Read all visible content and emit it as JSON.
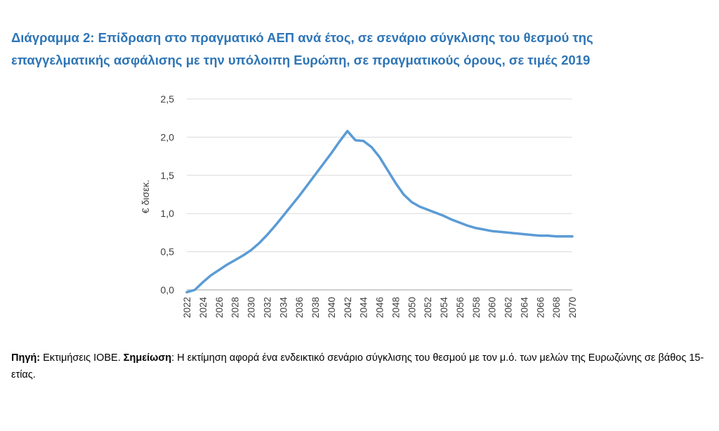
{
  "title": {
    "line1": "Διάγραμμα 2: Επίδραση στο πραγματικό ΑΕΠ ανά έτος, σε σενάριο σύγκλισης του θεσμού της",
    "line2": "επαγγελματικής ασφάλισης με την υπόλοιπη Ευρώπη, σε πραγματικούς όρους, σε τιμές 2019"
  },
  "colors": {
    "title": "#2e75b6",
    "line": "#5b9bd5",
    "grid": "#d9d9d9",
    "axis": "#bfbfbf"
  },
  "chart_data": {
    "type": "line",
    "title": "",
    "xlabel": "",
    "ylabel": "€ δισεκ.",
    "ylim": [
      0,
      2.5
    ],
    "yticks": [
      "0,0",
      "0,5",
      "1,0",
      "1,5",
      "2,0",
      "2,5"
    ],
    "xticks": [
      "2022",
      "2024",
      "2026",
      "2028",
      "2030",
      "2032",
      "2034",
      "2036",
      "2038",
      "2040",
      "2042",
      "2044",
      "2046",
      "2048",
      "2050",
      "2052",
      "2054",
      "2056",
      "2058",
      "2060",
      "2062",
      "2064",
      "2066",
      "2068",
      "2070"
    ],
    "grid": true,
    "legend": "none",
    "series": [
      {
        "x": [
          2022,
          2023,
          2024,
          2025,
          2026,
          2027,
          2028,
          2029,
          2030,
          2031,
          2032,
          2033,
          2034,
          2035,
          2036,
          2037,
          2038,
          2039,
          2040,
          2041,
          2042,
          2043,
          2044,
          2045,
          2046,
          2047,
          2048,
          2049,
          2050,
          2051,
          2052,
          2053,
          2054,
          2055,
          2056,
          2057,
          2058,
          2059,
          2060,
          2061,
          2062,
          2063,
          2064,
          2065,
          2066,
          2067,
          2068,
          2069,
          2070
        ],
        "values": [
          -0.03,
          0.0,
          0.1,
          0.19,
          0.26,
          0.33,
          0.39,
          0.45,
          0.52,
          0.61,
          0.72,
          0.84,
          0.97,
          1.1,
          1.23,
          1.37,
          1.51,
          1.65,
          1.79,
          1.94,
          2.08,
          1.96,
          1.95,
          1.87,
          1.74,
          1.57,
          1.4,
          1.25,
          1.15,
          1.09,
          1.05,
          1.01,
          0.97,
          0.92,
          0.88,
          0.84,
          0.81,
          0.79,
          0.77,
          0.76,
          0.75,
          0.74,
          0.73,
          0.72,
          0.71,
          0.71,
          0.7,
          0.7,
          0.7
        ]
      }
    ]
  },
  "note": {
    "source_label": "Πηγή:",
    "source_text": " Εκτιμήσεις ΙΟΒΕ. ",
    "note_label": "Σημείωση",
    "note_text": ": Η εκτίμηση αφορά ένα ενδεικτικό σενάριο σύγκλισης του θεσμού με τον μ.ό. των μελών της Ευρωζώνης σε βάθος 15-ετίας."
  }
}
